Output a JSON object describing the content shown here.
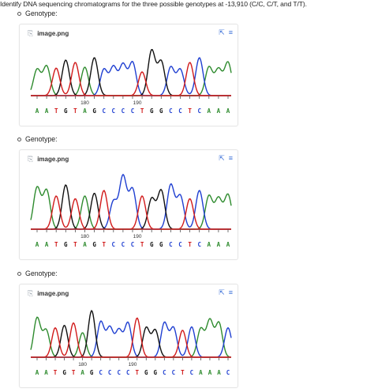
{
  "question": "Identify DNA sequencing chromatograms for the three possible genotypes at -13,910 (C/C, C/T, and T/T).",
  "colors": {
    "A": "#2e8b2e",
    "C": "#1f3fd1",
    "G": "#111111",
    "T": "#d11a1a",
    "baseline": "#c83030",
    "icon": "#3a6fd8"
  },
  "icons": {
    "attachment": "paperclip-icon",
    "expand": "expand-icon",
    "menu": "menu-icon"
  },
  "items": [
    {
      "label": "Genotype:",
      "attachment": "image.png",
      "ruler": [
        "180",
        "190"
      ],
      "bases": [
        "A",
        "A",
        "T",
        "G",
        "T",
        "A",
        "G",
        "C",
        "C",
        "C",
        "C",
        "T",
        "G",
        "G",
        "C",
        "C",
        "T",
        "C",
        "A",
        "A",
        "A"
      ]
    },
    {
      "label": "Genotype:",
      "attachment": "image.png",
      "ruler": [
        "180",
        "190"
      ],
      "bases": [
        "A",
        "A",
        "T",
        "G",
        "T",
        "A",
        "G",
        "T",
        "C",
        "C",
        "C",
        "T",
        "G",
        "G",
        "C",
        "C",
        "T",
        "C",
        "A",
        "A",
        "A"
      ]
    },
    {
      "label": "Genotype:",
      "attachment": "image.png",
      "ruler": [
        "180",
        "190"
      ],
      "bases": [
        "A",
        "A",
        "T",
        "G",
        "T",
        "A",
        "G",
        "C",
        "C",
        "C",
        "C",
        "T",
        "G",
        "G",
        "C",
        "C",
        "T",
        "C",
        "A",
        "A",
        "A",
        "C"
      ]
    }
  ]
}
